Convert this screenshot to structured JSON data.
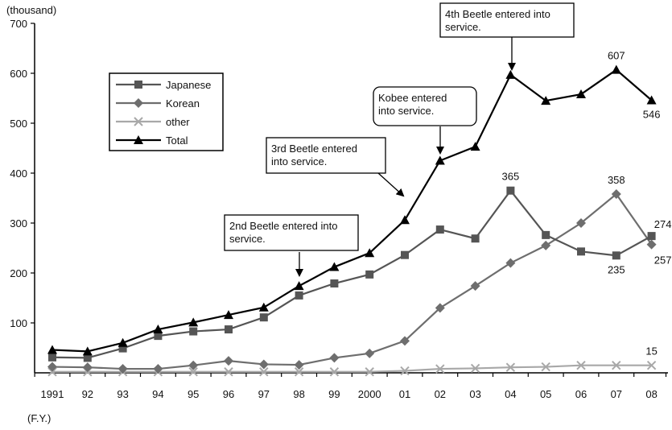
{
  "chart_data": {
    "type": "line",
    "unit_label": "(thousand)",
    "fy_label": "(F.Y.)",
    "categories": [
      "1991",
      "92",
      "93",
      "94",
      "95",
      "96",
      "97",
      "98",
      "99",
      "2000",
      "01",
      "02",
      "03",
      "04",
      "05",
      "06",
      "07",
      "08"
    ],
    "ylim": [
      0,
      700
    ],
    "yticks": [
      100,
      200,
      300,
      400,
      500,
      600,
      700
    ],
    "grid": false,
    "legend_position": "upper-left",
    "series": [
      {
        "name": "Japanese",
        "color": "#555555",
        "marker": "square",
        "values": [
          31,
          30,
          49,
          74,
          83,
          87,
          111,
          155,
          179,
          197,
          236,
          287,
          269,
          365,
          276,
          243,
          235,
          274
        ]
      },
      {
        "name": "Korean",
        "color": "#6e6e6e",
        "marker": "diamond",
        "values": [
          12,
          11,
          8,
          8,
          15,
          24,
          17,
          16,
          30,
          39,
          64,
          130,
          174,
          220,
          255,
          300,
          358,
          257
        ]
      },
      {
        "name": "other",
        "color": "#a8a8a8",
        "marker": "x",
        "values": [
          2,
          2,
          2,
          2,
          2,
          2,
          2,
          2,
          2,
          2,
          4,
          8,
          9,
          11,
          12,
          15,
          15,
          15
        ]
      },
      {
        "name": "Total",
        "color": "#000000",
        "marker": "triangle",
        "values": [
          46,
          43,
          60,
          87,
          101,
          116,
          131,
          174,
          212,
          240,
          306,
          425,
          453,
          597,
          545,
          558,
          607,
          546
        ]
      }
    ],
    "data_labels": [
      {
        "series": "Total",
        "index": 16,
        "text": "607",
        "place": "above"
      },
      {
        "series": "Total",
        "index": 17,
        "text": "546",
        "place": "below"
      },
      {
        "series": "Japanese",
        "index": 13,
        "text": "365",
        "place": "above"
      },
      {
        "series": "Korean",
        "index": 16,
        "text": "358",
        "place": "above"
      },
      {
        "series": "Japanese",
        "index": 16,
        "text": "235",
        "place": "below"
      },
      {
        "series": "Japanese",
        "index": 17,
        "text": "274",
        "place": "above-right"
      },
      {
        "series": "Korean",
        "index": 17,
        "text": "257",
        "place": "below-right"
      },
      {
        "series": "other",
        "index": 17,
        "text": "15",
        "place": "above"
      }
    ],
    "annotations": [
      {
        "lines": [
          "2nd Beetle entered into",
          "service."
        ],
        "style": "square",
        "arrow_index": 7
      },
      {
        "lines": [
          "3rd Beetle entered",
          "into service."
        ],
        "style": "square",
        "arrow_index": 10
      },
      {
        "lines": [
          "Kobee entered",
          "into service."
        ],
        "style": "rounded",
        "arrow_index": 11
      },
      {
        "lines": [
          "4th Beetle entered into",
          "service."
        ],
        "style": "square",
        "arrow_index": 13
      }
    ]
  }
}
